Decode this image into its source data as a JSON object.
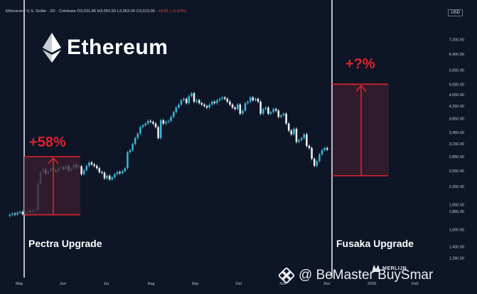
{
  "header": {
    "pair": "Ethereum / U.S. Dollar · 2D · Coinbase",
    "open": "O3,031.86",
    "high": "H3,053.53",
    "low": "L2,963.00",
    "close": "C3,013.05",
    "change": "−18.81 (−0.62%)"
  },
  "currency_badge": "USD",
  "logo": {
    "text": "Ethereum",
    "icon": "ethereum-diamond-icon"
  },
  "events": {
    "pectra": {
      "label": "Pectra Upgrade",
      "gain": "+58%"
    },
    "fusaka": {
      "label": "Fusaka Upgrade",
      "gain": "+?%"
    }
  },
  "watermark": {
    "text": "@ BeMaster BuySmar",
    "icon": "binance-diamond-icon"
  },
  "merlijn": {
    "text": "MERLIJN"
  },
  "colors": {
    "background": "#0d1526",
    "candle_up": "#3ab7d9",
    "candle_down": "#f2f4f7",
    "accent_red": "#e0232e",
    "box_fill": "#3b1e2e",
    "event_line": "#e5e7eb"
  },
  "chart_data": {
    "type": "candlestick",
    "y_scale": "log",
    "ylim": [
      1120,
      8300
    ],
    "y_ticks": [
      "7,200.00",
      "6,400.00",
      "5,650.00",
      "5,050.00",
      "4,650.00",
      "4,250.00",
      "3,850.00",
      "3,450.00",
      "3,150.00",
      "2,850.00",
      "2,550.00",
      "2,250.00",
      "1,950.00",
      "1,850.00",
      "1,600.00",
      "1,400.00",
      "1,280.00"
    ],
    "x_ticks": [
      "May",
      "Jun",
      "Jul",
      "Aug",
      "Sep",
      "Oct",
      "Nov",
      "Dec",
      "2026",
      "Feb"
    ],
    "close_series": [
      1800,
      1815,
      1805,
      1830,
      1840,
      1810,
      1835,
      1850,
      1845,
      1860,
      1870,
      2300,
      2520,
      2580,
      2490,
      2550,
      2600,
      2560,
      2540,
      2600,
      2620,
      2580,
      2650,
      2550,
      2600,
      2680,
      2620,
      2640,
      2480,
      2560,
      2650,
      2720,
      2680,
      2650,
      2600,
      2520,
      2510,
      2400,
      2450,
      2380,
      2420,
      2480,
      2520,
      2500,
      2540,
      2600,
      2950,
      3000,
      3150,
      3300,
      3420,
      3600,
      3650,
      3700,
      3780,
      3750,
      3700,
      3600,
      3300,
      3800,
      3700,
      3750,
      3780,
      3900,
      4050,
      4200,
      4300,
      4450,
      4500,
      4350,
      4600,
      4700,
      4400,
      4450,
      4350,
      4300,
      4250,
      4200,
      4300,
      4400,
      4350,
      4450,
      4500,
      4550,
      4500,
      4400,
      4300,
      4200,
      4150,
      4300,
      4000,
      4100,
      4350,
      4400,
      4550,
      4450,
      4500,
      4400,
      4000,
      4150,
      4200,
      4000,
      4050,
      4150,
      4100,
      3900,
      3950,
      4000,
      3700,
      3500,
      3400,
      3550,
      3200,
      3250,
      3300,
      3400,
      3100,
      3050,
      2800,
      2650,
      2750,
      2900,
      3000,
      3050,
      3013
    ],
    "pectra": {
      "date_label": "May 7",
      "base_price": 1800,
      "target_price": 2850,
      "gain": "+58%"
    },
    "fusaka": {
      "date_label": "Dec",
      "base_price": 2450,
      "target_price": 5050,
      "gain": "+?%"
    }
  }
}
